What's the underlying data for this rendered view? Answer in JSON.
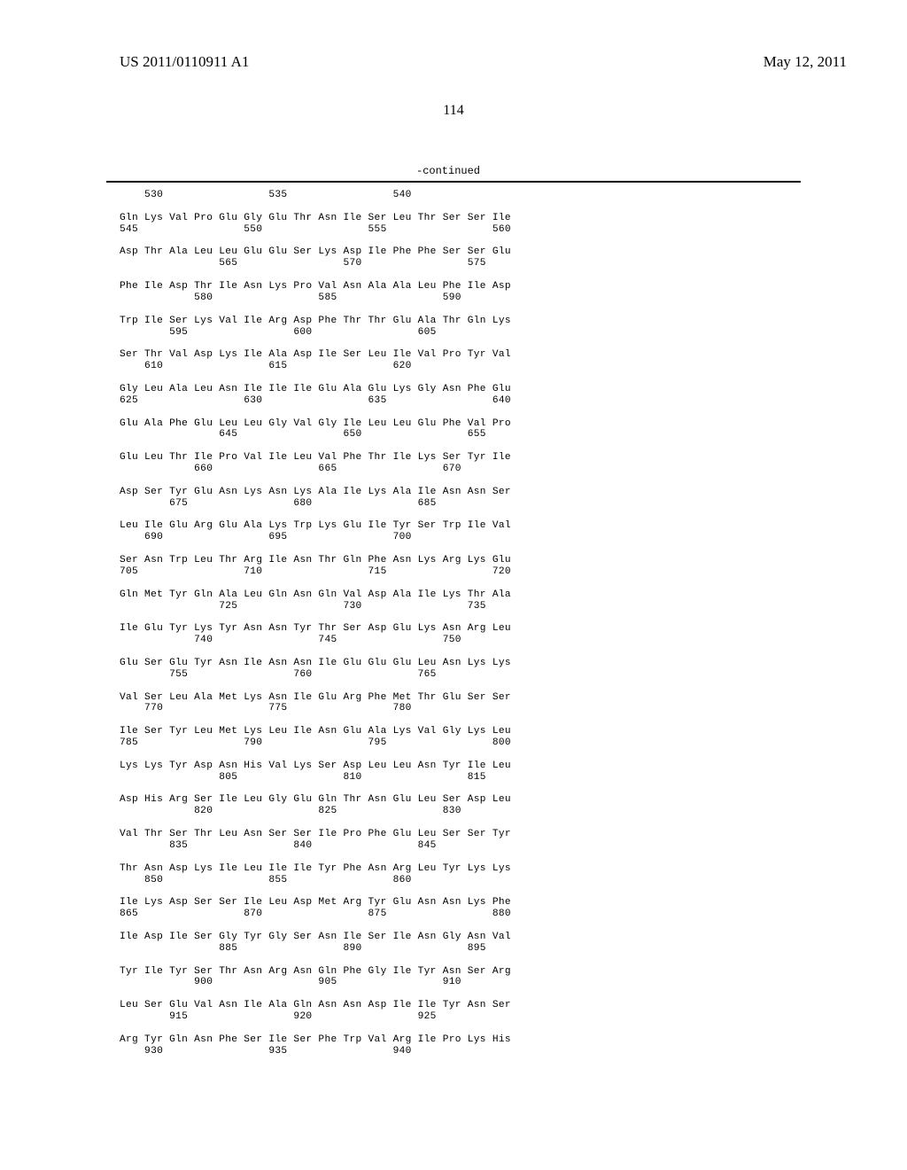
{
  "header": {
    "patent_no": "US 2011/0110911 A1",
    "date": "May 12, 2011"
  },
  "page_number": "114",
  "continued_label": "-continued",
  "sequence_rows": [
    {
      "aa": "",
      "pos": "    530                 535                 540"
    },
    {
      "aa": "Gln Lys Val Pro Glu Gly Glu Thr Asn Ile Ser Leu Thr Ser Ser Ile",
      "pos": "545                 550                 555                 560"
    },
    {
      "aa": "Asp Thr Ala Leu Leu Glu Glu Ser Lys Asp Ile Phe Phe Ser Ser Glu",
      "pos": "                565                 570                 575"
    },
    {
      "aa": "Phe Ile Asp Thr Ile Asn Lys Pro Val Asn Ala Ala Leu Phe Ile Asp",
      "pos": "            580                 585                 590"
    },
    {
      "aa": "Trp Ile Ser Lys Val Ile Arg Asp Phe Thr Thr Glu Ala Thr Gln Lys",
      "pos": "        595                 600                 605"
    },
    {
      "aa": "Ser Thr Val Asp Lys Ile Ala Asp Ile Ser Leu Ile Val Pro Tyr Val",
      "pos": "    610                 615                 620"
    },
    {
      "aa": "Gly Leu Ala Leu Asn Ile Ile Ile Glu Ala Glu Lys Gly Asn Phe Glu",
      "pos": "625                 630                 635                 640"
    },
    {
      "aa": "Glu Ala Phe Glu Leu Leu Gly Val Gly Ile Leu Leu Glu Phe Val Pro",
      "pos": "                645                 650                 655"
    },
    {
      "aa": "Glu Leu Thr Ile Pro Val Ile Leu Val Phe Thr Ile Lys Ser Tyr Ile",
      "pos": "            660                 665                 670"
    },
    {
      "aa": "Asp Ser Tyr Glu Asn Lys Asn Lys Ala Ile Lys Ala Ile Asn Asn Ser",
      "pos": "        675                 680                 685"
    },
    {
      "aa": "Leu Ile Glu Arg Glu Ala Lys Trp Lys Glu Ile Tyr Ser Trp Ile Val",
      "pos": "    690                 695                 700"
    },
    {
      "aa": "Ser Asn Trp Leu Thr Arg Ile Asn Thr Gln Phe Asn Lys Arg Lys Glu",
      "pos": "705                 710                 715                 720"
    },
    {
      "aa": "Gln Met Tyr Gln Ala Leu Gln Asn Gln Val Asp Ala Ile Lys Thr Ala",
      "pos": "                725                 730                 735"
    },
    {
      "aa": "Ile Glu Tyr Lys Tyr Asn Asn Tyr Thr Ser Asp Glu Lys Asn Arg Leu",
      "pos": "            740                 745                 750"
    },
    {
      "aa": "Glu Ser Glu Tyr Asn Ile Asn Asn Ile Glu Glu Glu Leu Asn Lys Lys",
      "pos": "        755                 760                 765"
    },
    {
      "aa": "Val Ser Leu Ala Met Lys Asn Ile Glu Arg Phe Met Thr Glu Ser Ser",
      "pos": "    770                 775                 780"
    },
    {
      "aa": "Ile Ser Tyr Leu Met Lys Leu Ile Asn Glu Ala Lys Val Gly Lys Leu",
      "pos": "785                 790                 795                 800"
    },
    {
      "aa": "Lys Lys Tyr Asp Asn His Val Lys Ser Asp Leu Leu Asn Tyr Ile Leu",
      "pos": "                805                 810                 815"
    },
    {
      "aa": "Asp His Arg Ser Ile Leu Gly Glu Gln Thr Asn Glu Leu Ser Asp Leu",
      "pos": "            820                 825                 830"
    },
    {
      "aa": "Val Thr Ser Thr Leu Asn Ser Ser Ile Pro Phe Glu Leu Ser Ser Tyr",
      "pos": "        835                 840                 845"
    },
    {
      "aa": "Thr Asn Asp Lys Ile Leu Ile Ile Tyr Phe Asn Arg Leu Tyr Lys Lys",
      "pos": "    850                 855                 860"
    },
    {
      "aa": "Ile Lys Asp Ser Ser Ile Leu Asp Met Arg Tyr Glu Asn Asn Lys Phe",
      "pos": "865                 870                 875                 880"
    },
    {
      "aa": "Ile Asp Ile Ser Gly Tyr Gly Ser Asn Ile Ser Ile Asn Gly Asn Val",
      "pos": "                885                 890                 895"
    },
    {
      "aa": "Tyr Ile Tyr Ser Thr Asn Arg Asn Gln Phe Gly Ile Tyr Asn Ser Arg",
      "pos": "            900                 905                 910"
    },
    {
      "aa": "Leu Ser Glu Val Asn Ile Ala Gln Asn Asn Asp Ile Ile Tyr Asn Ser",
      "pos": "        915                 920                 925"
    },
    {
      "aa": "Arg Tyr Gln Asn Phe Ser Ile Ser Phe Trp Val Arg Ile Pro Lys His",
      "pos": "    930                 935                 940"
    }
  ]
}
